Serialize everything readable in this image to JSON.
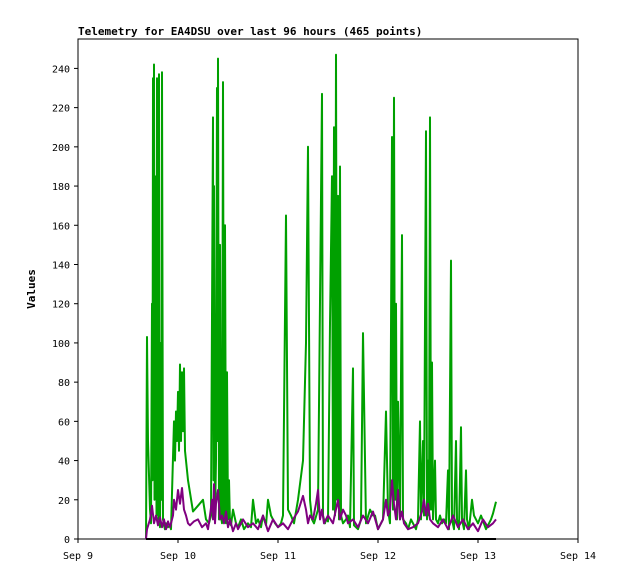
{
  "chart_data": {
    "type": "line",
    "title": "Telemetry for EA4DSU over last 96 hours (465 points)",
    "xlabel": "",
    "ylabel": "Values",
    "x_ticks": [
      "Sep 9",
      "Sep 10",
      "Sep 11",
      "Sep 12",
      "Sep 13",
      "Sep 14"
    ],
    "xlim": [
      0,
      5
    ],
    "ylim": [
      0,
      255
    ],
    "y_ticks": [
      0,
      20,
      40,
      60,
      80,
      100,
      120,
      140,
      160,
      180,
      200,
      220,
      240
    ],
    "grid": false,
    "legend": "none",
    "series": [
      {
        "color": "#00a000",
        "points": [
          [
            0.68,
            0
          ],
          [
            0.69,
            103
          ],
          [
            0.7,
            50
          ],
          [
            0.72,
            15
          ],
          [
            0.73,
            8
          ],
          [
            0.74,
            120
          ],
          [
            0.745,
            30
          ],
          [
            0.75,
            235
          ],
          [
            0.755,
            60
          ],
          [
            0.76,
            242
          ],
          [
            0.765,
            20
          ],
          [
            0.77,
            145
          ],
          [
            0.775,
            40
          ],
          [
            0.78,
            185
          ],
          [
            0.785,
            12
          ],
          [
            0.79,
            235
          ],
          [
            0.795,
            25
          ],
          [
            0.8,
            160
          ],
          [
            0.805,
            10
          ],
          [
            0.81,
            237
          ],
          [
            0.815,
            15
          ],
          [
            0.82,
            6
          ],
          [
            0.83,
            100
          ],
          [
            0.835,
            20
          ],
          [
            0.84,
            238
          ],
          [
            0.85,
            10
          ],
          [
            0.86,
            7
          ],
          [
            0.87,
            5
          ],
          [
            0.88,
            8
          ],
          [
            0.9,
            6
          ],
          [
            0.92,
            7
          ],
          [
            0.93,
            5
          ],
          [
            0.96,
            60
          ],
          [
            0.97,
            40
          ],
          [
            0.98,
            65
          ],
          [
            0.99,
            50
          ],
          [
            1.0,
            75
          ],
          [
            1.01,
            45
          ],
          [
            1.02,
            89
          ],
          [
            1.03,
            50
          ],
          [
            1.04,
            85
          ],
          [
            1.05,
            55
          ],
          [
            1.06,
            87
          ],
          [
            1.07,
            45
          ],
          [
            1.1,
            30
          ],
          [
            1.15,
            14
          ],
          [
            1.2,
            17
          ],
          [
            1.25,
            20
          ],
          [
            1.28,
            10
          ],
          [
            1.31,
            8
          ],
          [
            1.33,
            12
          ],
          [
            1.35,
            215
          ],
          [
            1.355,
            30
          ],
          [
            1.36,
            180
          ],
          [
            1.37,
            10
          ],
          [
            1.38,
            40
          ],
          [
            1.39,
            230
          ],
          [
            1.395,
            50
          ],
          [
            1.4,
            245
          ],
          [
            1.41,
            10
          ],
          [
            1.42,
            150
          ],
          [
            1.43,
            12
          ],
          [
            1.44,
            8
          ],
          [
            1.45,
            233
          ],
          [
            1.46,
            10
          ],
          [
            1.47,
            160
          ],
          [
            1.48,
            8
          ],
          [
            1.49,
            85
          ],
          [
            1.5,
            10
          ],
          [
            1.51,
            30
          ],
          [
            1.52,
            8
          ],
          [
            1.53,
            7
          ],
          [
            1.55,
            15
          ],
          [
            1.58,
            8
          ],
          [
            1.6,
            6
          ],
          [
            1.63,
            10
          ],
          [
            1.66,
            5
          ],
          [
            1.7,
            8
          ],
          [
            1.73,
            6
          ],
          [
            1.75,
            20
          ],
          [
            1.78,
            8
          ],
          [
            1.8,
            10
          ],
          [
            1.83,
            6
          ],
          [
            1.85,
            12
          ],
          [
            1.88,
            7
          ],
          [
            1.9,
            20
          ],
          [
            1.93,
            12
          ],
          [
            1.95,
            10
          ],
          [
            1.97,
            8
          ],
          [
            2.0,
            6
          ],
          [
            2.03,
            8
          ],
          [
            2.05,
            12
          ],
          [
            2.08,
            165
          ],
          [
            2.1,
            15
          ],
          [
            2.13,
            12
          ],
          [
            2.16,
            8
          ],
          [
            2.2,
            20
          ],
          [
            2.25,
            40
          ],
          [
            2.28,
            100
          ],
          [
            2.3,
            200
          ],
          [
            2.32,
            20
          ],
          [
            2.34,
            10
          ],
          [
            2.36,
            8
          ],
          [
            2.4,
            15
          ],
          [
            2.44,
            227
          ],
          [
            2.45,
            12
          ],
          [
            2.47,
            8
          ],
          [
            2.48,
            10
          ],
          [
            2.5,
            9
          ],
          [
            2.52,
            110
          ],
          [
            2.54,
            185
          ],
          [
            2.55,
            15
          ],
          [
            2.56,
            210
          ],
          [
            2.57,
            12
          ],
          [
            2.58,
            247
          ],
          [
            2.59,
            20
          ],
          [
            2.6,
            175
          ],
          [
            2.61,
            10
          ],
          [
            2.62,
            190
          ],
          [
            2.63,
            12
          ],
          [
            2.65,
            8
          ],
          [
            2.68,
            10
          ],
          [
            2.7,
            12
          ],
          [
            2.72,
            6
          ],
          [
            2.75,
            87
          ],
          [
            2.76,
            7
          ],
          [
            2.8,
            5
          ],
          [
            2.83,
            10
          ],
          [
            2.85,
            105
          ],
          [
            2.88,
            8
          ],
          [
            2.92,
            15
          ],
          [
            2.95,
            12
          ],
          [
            2.97,
            12
          ],
          [
            3.0,
            5
          ],
          [
            3.03,
            8
          ],
          [
            3.05,
            10
          ],
          [
            3.08,
            65
          ],
          [
            3.1,
            15
          ],
          [
            3.12,
            8
          ],
          [
            3.14,
            205
          ],
          [
            3.15,
            15
          ],
          [
            3.16,
            225
          ],
          [
            3.17,
            20
          ],
          [
            3.18,
            120
          ],
          [
            3.19,
            10
          ],
          [
            3.2,
            70
          ],
          [
            3.22,
            10
          ],
          [
            3.24,
            155
          ],
          [
            3.25,
            10
          ],
          [
            3.28,
            8
          ],
          [
            3.3,
            5
          ],
          [
            3.33,
            10
          ],
          [
            3.35,
            8
          ],
          [
            3.38,
            5
          ],
          [
            3.4,
            10
          ],
          [
            3.42,
            60
          ],
          [
            3.43,
            10
          ],
          [
            3.45,
            50
          ],
          [
            3.46,
            12
          ],
          [
            3.48,
            208
          ],
          [
            3.49,
            10
          ],
          [
            3.5,
            40
          ],
          [
            3.51,
            12
          ],
          [
            3.52,
            215
          ],
          [
            3.53,
            15
          ],
          [
            3.54,
            90
          ],
          [
            3.55,
            10
          ],
          [
            3.57,
            40
          ],
          [
            3.58,
            10
          ],
          [
            3.6,
            8
          ],
          [
            3.62,
            12
          ],
          [
            3.64,
            8
          ],
          [
            3.66,
            10
          ],
          [
            3.68,
            8
          ],
          [
            3.7,
            35
          ],
          [
            3.71,
            5
          ],
          [
            3.73,
            142
          ],
          [
            3.74,
            10
          ],
          [
            3.76,
            5
          ],
          [
            3.78,
            50
          ],
          [
            3.79,
            10
          ],
          [
            3.81,
            5
          ],
          [
            3.83,
            57
          ],
          [
            3.84,
            10
          ],
          [
            3.86,
            5
          ],
          [
            3.88,
            35
          ],
          [
            3.89,
            10
          ],
          [
            3.91,
            5
          ],
          [
            3.94,
            20
          ],
          [
            3.96,
            12
          ],
          [
            3.98,
            10
          ],
          [
            4.0,
            8
          ],
          [
            4.03,
            12
          ],
          [
            4.08,
            5
          ],
          [
            4.13,
            10
          ],
          [
            4.15,
            13
          ],
          [
            4.18,
            19
          ]
        ]
      },
      {
        "color": "#800080",
        "points": [
          [
            0.68,
            0
          ],
          [
            0.69,
            5
          ],
          [
            0.72,
            10
          ],
          [
            0.74,
            17
          ],
          [
            0.76,
            8
          ],
          [
            0.78,
            12
          ],
          [
            0.8,
            7
          ],
          [
            0.82,
            11
          ],
          [
            0.84,
            6
          ],
          [
            0.86,
            10
          ],
          [
            0.88,
            5
          ],
          [
            0.9,
            9
          ],
          [
            0.92,
            6
          ],
          [
            0.94,
            10
          ],
          [
            0.95,
            12
          ],
          [
            0.96,
            20
          ],
          [
            0.98,
            15
          ],
          [
            1.0,
            25
          ],
          [
            1.02,
            18
          ],
          [
            1.04,
            26
          ],
          [
            1.06,
            15
          ],
          [
            1.08,
            12
          ],
          [
            1.1,
            8
          ],
          [
            1.12,
            7
          ],
          [
            1.14,
            8
          ],
          [
            1.16,
            9
          ],
          [
            1.2,
            10
          ],
          [
            1.24,
            6
          ],
          [
            1.28,
            8
          ],
          [
            1.3,
            5
          ],
          [
            1.32,
            12
          ],
          [
            1.34,
            20
          ],
          [
            1.35,
            10
          ],
          [
            1.36,
            28
          ],
          [
            1.37,
            8
          ],
          [
            1.38,
            18
          ],
          [
            1.4,
            25
          ],
          [
            1.42,
            10
          ],
          [
            1.44,
            12
          ],
          [
            1.46,
            8
          ],
          [
            1.48,
            14
          ],
          [
            1.5,
            6
          ],
          [
            1.52,
            10
          ],
          [
            1.55,
            4
          ],
          [
            1.58,
            8
          ],
          [
            1.6,
            5
          ],
          [
            1.65,
            10
          ],
          [
            1.7,
            6
          ],
          [
            1.75,
            8
          ],
          [
            1.8,
            5
          ],
          [
            1.85,
            12
          ],
          [
            1.9,
            4
          ],
          [
            1.95,
            10
          ],
          [
            2.0,
            6
          ],
          [
            2.05,
            8
          ],
          [
            2.1,
            5
          ],
          [
            2.15,
            10
          ],
          [
            2.2,
            14
          ],
          [
            2.25,
            22
          ],
          [
            2.28,
            15
          ],
          [
            2.3,
            8
          ],
          [
            2.32,
            12
          ],
          [
            2.35,
            10
          ],
          [
            2.38,
            18
          ],
          [
            2.4,
            25
          ],
          [
            2.42,
            10
          ],
          [
            2.44,
            15
          ],
          [
            2.46,
            8
          ],
          [
            2.5,
            12
          ],
          [
            2.55,
            8
          ],
          [
            2.6,
            20
          ],
          [
            2.62,
            10
          ],
          [
            2.65,
            15
          ],
          [
            2.68,
            12
          ],
          [
            2.7,
            8
          ],
          [
            2.75,
            10
          ],
          [
            2.8,
            6
          ],
          [
            2.85,
            12
          ],
          [
            2.9,
            8
          ],
          [
            2.95,
            14
          ],
          [
            3.0,
            5
          ],
          [
            3.05,
            10
          ],
          [
            3.08,
            20
          ],
          [
            3.1,
            12
          ],
          [
            3.12,
            15
          ],
          [
            3.14,
            30
          ],
          [
            3.16,
            18
          ],
          [
            3.18,
            10
          ],
          [
            3.2,
            25
          ],
          [
            3.22,
            10
          ],
          [
            3.24,
            14
          ],
          [
            3.26,
            8
          ],
          [
            3.3,
            5
          ],
          [
            3.35,
            6
          ],
          [
            3.4,
            8
          ],
          [
            3.44,
            14
          ],
          [
            3.46,
            20
          ],
          [
            3.48,
            12
          ],
          [
            3.5,
            18
          ],
          [
            3.52,
            10
          ],
          [
            3.55,
            8
          ],
          [
            3.6,
            6
          ],
          [
            3.65,
            10
          ],
          [
            3.7,
            5
          ],
          [
            3.75,
            12
          ],
          [
            3.8,
            6
          ],
          [
            3.85,
            10
          ],
          [
            3.9,
            5
          ],
          [
            3.95,
            8
          ],
          [
            4.0,
            4
          ],
          [
            4.05,
            10
          ],
          [
            4.1,
            6
          ],
          [
            4.15,
            8
          ],
          [
            4.18,
            10
          ]
        ]
      },
      {
        "color": "#000000",
        "points": [
          [
            0.68,
            0
          ],
          [
            4.18,
            0
          ]
        ]
      }
    ]
  }
}
